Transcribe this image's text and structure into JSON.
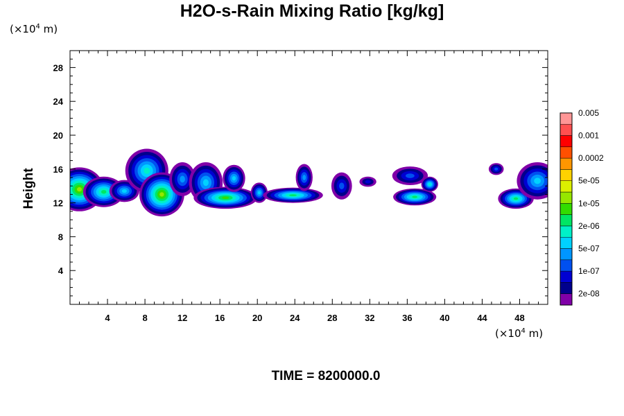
{
  "chart_data": {
    "type": "heatmap",
    "title": "H2O-s-Rain Mixing Ratio [kg/kg]",
    "ylabel": "Height",
    "x_unit_prefix": "(×10",
    "unit_exp": "4",
    "unit_suffix": " m)",
    "xlim": [
      0,
      51
    ],
    "ylim": [
      0,
      30
    ],
    "x_ticks": [
      4,
      8,
      12,
      16,
      20,
      24,
      28,
      32,
      36,
      40,
      44,
      48
    ],
    "y_ticks": [
      4,
      8,
      12,
      16,
      20,
      24,
      28
    ],
    "time_label": "TIME = 8200000.0",
    "colorbar": {
      "colors": [
        "#8000a8",
        "#00008c",
        "#0000d2",
        "#0050f0",
        "#0096ff",
        "#00d2ff",
        "#00f0c8",
        "#00e664",
        "#32dc00",
        "#96e600",
        "#dcf000",
        "#ffd200",
        "#ff9600",
        "#ff5000",
        "#ff0000",
        "#ff5050",
        "#ff9696"
      ],
      "labels": [
        "2e-08",
        "1e-07",
        "5e-07",
        "2e-06",
        "1e-05",
        "5e-05",
        "0.0002",
        "0.001",
        "0.005"
      ],
      "label_levels": [
        1,
        3,
        5,
        7,
        9,
        11,
        13,
        15,
        17
      ]
    },
    "features": [
      {
        "x": 1.0,
        "y": 13.6,
        "rx": 2.6,
        "ry": 2.6,
        "level": 9
      },
      {
        "x": 3.6,
        "y": 13.3,
        "rx": 2.2,
        "ry": 1.8,
        "level": 7
      },
      {
        "x": 5.8,
        "y": 13.4,
        "rx": 1.6,
        "ry": 1.3,
        "level": 5
      },
      {
        "x": 8.2,
        "y": 15.8,
        "rx": 2.3,
        "ry": 2.6,
        "level": 6
      },
      {
        "x": 9.8,
        "y": 13.0,
        "rx": 2.4,
        "ry": 2.6,
        "level": 9
      },
      {
        "x": 12.0,
        "y": 14.8,
        "rx": 1.4,
        "ry": 2.0,
        "level": 4
      },
      {
        "x": 14.5,
        "y": 14.4,
        "rx": 1.8,
        "ry": 2.4,
        "level": 5
      },
      {
        "x": 16.6,
        "y": 12.6,
        "rx": 3.4,
        "ry": 1.3,
        "level": 8
      },
      {
        "x": 17.5,
        "y": 14.9,
        "rx": 1.2,
        "ry": 1.6,
        "level": 5
      },
      {
        "x": 20.2,
        "y": 13.2,
        "rx": 0.9,
        "ry": 1.2,
        "level": 5
      },
      {
        "x": 23.8,
        "y": 12.9,
        "rx": 3.2,
        "ry": 0.9,
        "level": 7
      },
      {
        "x": 25.0,
        "y": 15.0,
        "rx": 0.9,
        "ry": 1.6,
        "level": 4
      },
      {
        "x": 29.0,
        "y": 14.0,
        "rx": 1.1,
        "ry": 1.6,
        "level": 3
      },
      {
        "x": 31.8,
        "y": 14.5,
        "rx": 0.9,
        "ry": 0.6,
        "level": 2
      },
      {
        "x": 36.3,
        "y": 15.2,
        "rx": 1.9,
        "ry": 1.1,
        "level": 3
      },
      {
        "x": 36.8,
        "y": 12.7,
        "rx": 2.3,
        "ry": 1.0,
        "level": 7
      },
      {
        "x": 38.4,
        "y": 14.2,
        "rx": 0.9,
        "ry": 0.9,
        "level": 6
      },
      {
        "x": 45.5,
        "y": 16.0,
        "rx": 0.8,
        "ry": 0.7,
        "level": 3
      },
      {
        "x": 47.6,
        "y": 12.5,
        "rx": 1.9,
        "ry": 1.2,
        "level": 7
      },
      {
        "x": 49.9,
        "y": 14.6,
        "rx": 2.2,
        "ry": 2.2,
        "level": 5
      }
    ]
  }
}
